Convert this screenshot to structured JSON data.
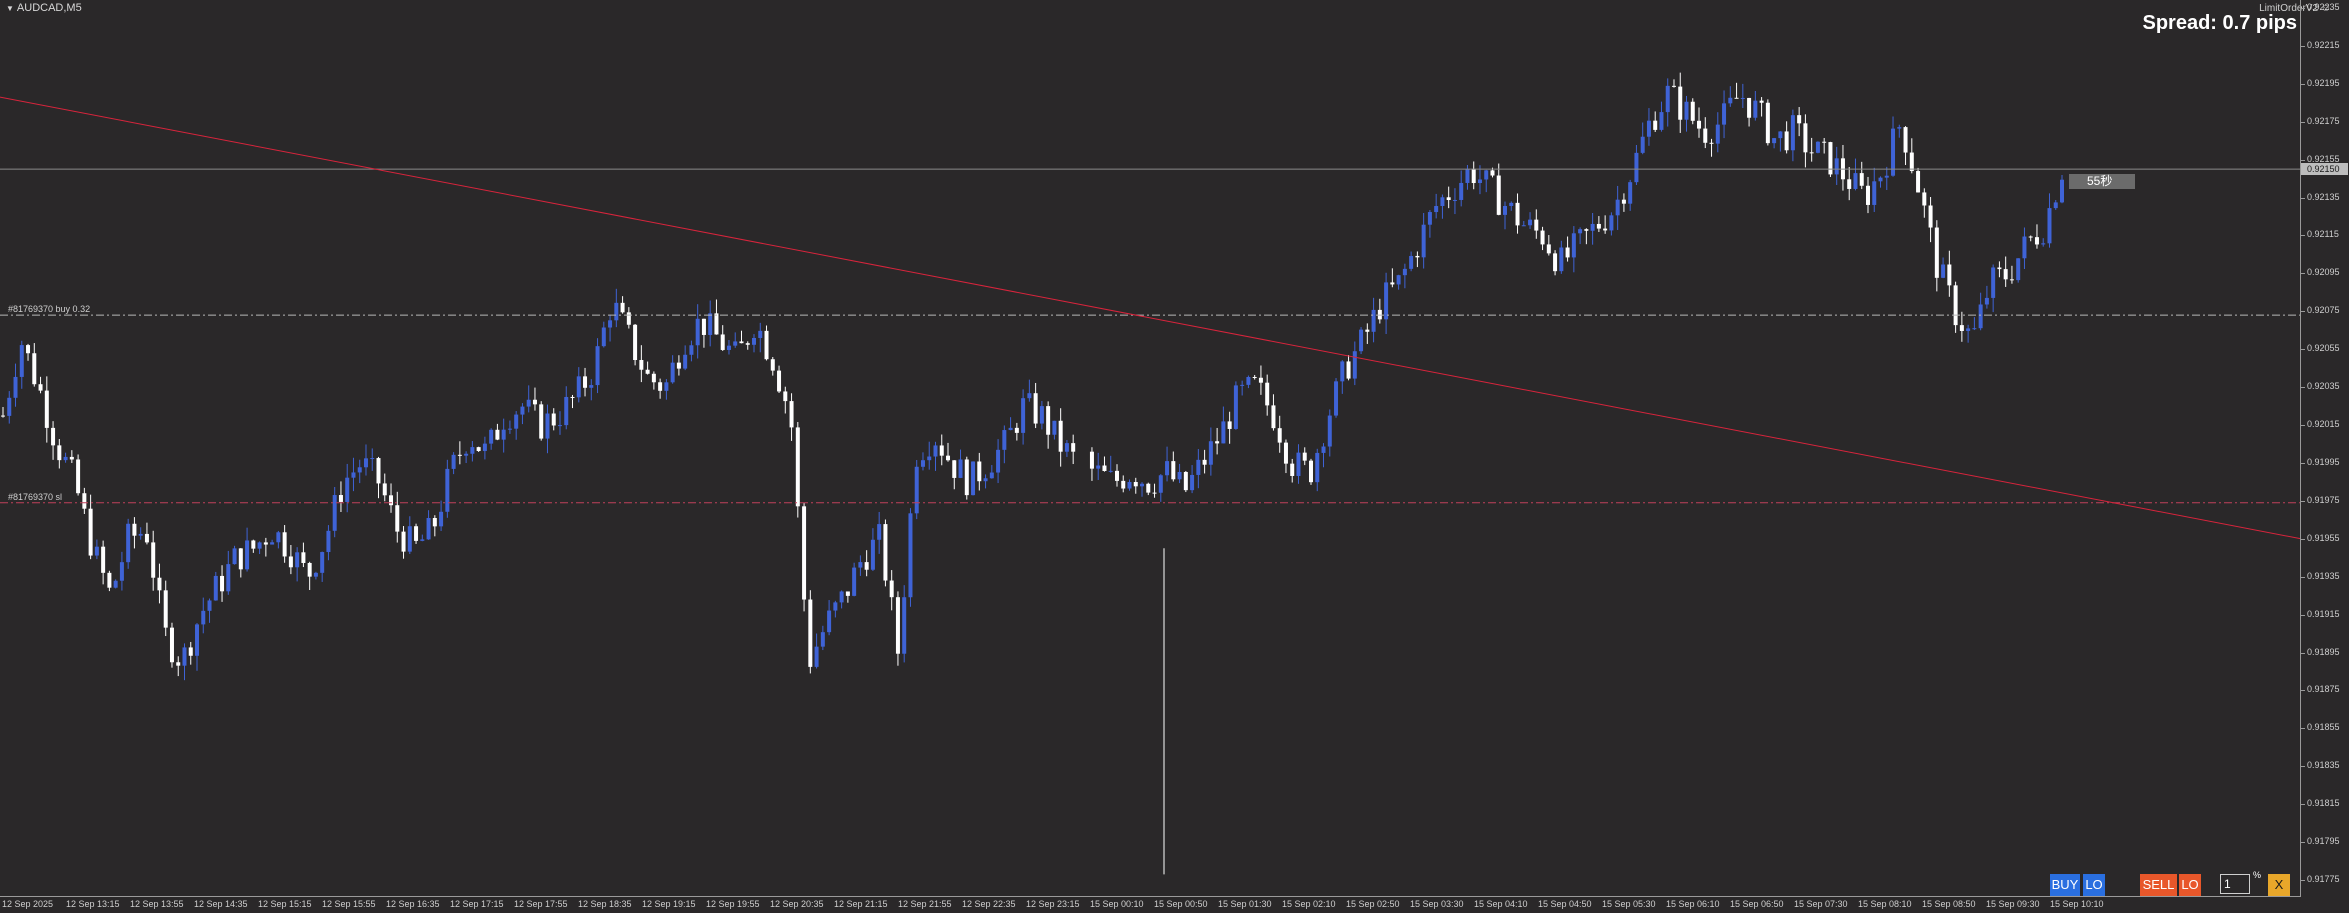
{
  "symbol": "AUDCAD,M5",
  "ea_name": "LimitOrderV2",
  "spread_text": "Spread: 0.7 pips",
  "countdown_text": "55秒",
  "order_lines": [
    {
      "label": "#81769370 buy 0.32",
      "price": 0.92073
    },
    {
      "label": "#81769370 sl",
      "price": 0.91974
    }
  ],
  "current_price": {
    "label": "0.92150",
    "value": 0.9215
  },
  "price_ticks": [
    "0.92235",
    "0.92215",
    "0.92195",
    "0.92175",
    "0.92155",
    "0.92135",
    "0.92115",
    "0.92095",
    "0.92075",
    "0.92055",
    "0.92035",
    "0.92015",
    "0.91995",
    "0.91975",
    "0.91955",
    "0.91935",
    "0.91915",
    "0.91895",
    "0.91875",
    "0.91855",
    "0.91835",
    "0.91815",
    "0.91795",
    "0.91775"
  ],
  "time_ticks": [
    "12 Sep 2025",
    "12 Sep 13:15",
    "12 Sep 13:55",
    "12 Sep 14:35",
    "12 Sep 15:15",
    "12 Sep 15:55",
    "12 Sep 16:35",
    "12 Sep 17:15",
    "12 Sep 17:55",
    "12 Sep 18:35",
    "12 Sep 19:15",
    "12 Sep 19:55",
    "12 Sep 20:35",
    "12 Sep 21:15",
    "12 Sep 21:55",
    "12 Sep 22:35",
    "12 Sep 23:15",
    "15 Sep 00:10",
    "15 Sep 00:50",
    "15 Sep 01:30",
    "15 Sep 02:10",
    "15 Sep 02:50",
    "15 Sep 03:30",
    "15 Sep 04:10",
    "15 Sep 04:50",
    "15 Sep 05:30",
    "15 Sep 06:10",
    "15 Sep 06:50",
    "15 Sep 07:30",
    "15 Sep 08:10",
    "15 Sep 08:50",
    "15 Sep 09:30",
    "15 Sep 10:10"
  ],
  "trendline": {
    "price_start": 0.92188,
    "price_end": 0.91955
  },
  "trade_panel": {
    "buy_label": "BUY",
    "buy_lo_label": "LO",
    "sell_label": "SELL",
    "sell_lo_label": "LO",
    "lot_value": "1",
    "pct_label": "%",
    "close_label": "X"
  },
  "colors": {
    "background": "#2a2829",
    "bull_candle": "#3f63d6",
    "bear_candle": "#ffffff",
    "trendline": "#d8243c",
    "order_line": "#b8b8b8",
    "sl_line": "#c0405a",
    "buy_button": "#2a6fe0",
    "sell_button": "#e8572a",
    "close_button": "#e8a72a"
  },
  "chart_data": {
    "type": "candlestick",
    "series_name": "AUDCAD,M5",
    "ylim": [
      0.9177,
      0.9224
    ],
    "close_keypoints": [
      0.9202,
      0.9206,
      0.92035,
      0.92005,
      0.91985,
      0.9195,
      0.91925,
      0.91955,
      0.9196,
      0.91905,
      0.9189,
      0.91915,
      0.9193,
      0.91945,
      0.9195,
      0.9196,
      0.9195,
      0.91935,
      0.91955,
      0.91985,
      0.91995,
      0.91985,
      0.9196,
      0.9195,
      0.9196,
      0.9199,
      0.9201,
      0.92,
      0.9202,
      0.92025,
      0.92015,
      0.9202,
      0.9203,
      0.92045,
      0.9208,
      0.9206,
      0.9204,
      0.92035,
      0.9206,
      0.9207,
      0.9206,
      0.9205,
      0.9207,
      0.9205,
      0.9202,
      0.9189,
      0.9191,
      0.91925,
      0.91945,
      0.91955,
      0.91895,
      0.92,
      0.9201,
      0.91995,
      0.91985,
      0.91995,
      0.92005,
      0.92025,
      0.9202,
      0.92005,
      0.91995,
      0.9199,
      0.91985,
      0.9199,
      0.91985,
      0.9199,
      0.9198,
      0.91995,
      0.9201,
      0.9203,
      0.92035,
      0.9202,
      0.91995,
      0.9199,
      0.9202,
      0.92045,
      0.9206,
      0.9208,
      0.9209,
      0.9211,
      0.9213,
      0.9214,
      0.9215,
      0.9214,
      0.9213,
      0.9212,
      0.92115,
      0.921,
      0.9211,
      0.9212,
      0.9213,
      0.9215,
      0.92175,
      0.9219,
      0.9218,
      0.9217,
      0.92175,
      0.9219,
      0.9218,
      0.92165,
      0.9217,
      0.9216,
      0.92155,
      0.92145,
      0.92135,
      0.9215,
      0.92175,
      0.9214,
      0.921,
      0.92075,
      0.9206,
      0.9209,
      0.92095,
      0.9211,
      0.9212,
      0.9215
    ]
  }
}
